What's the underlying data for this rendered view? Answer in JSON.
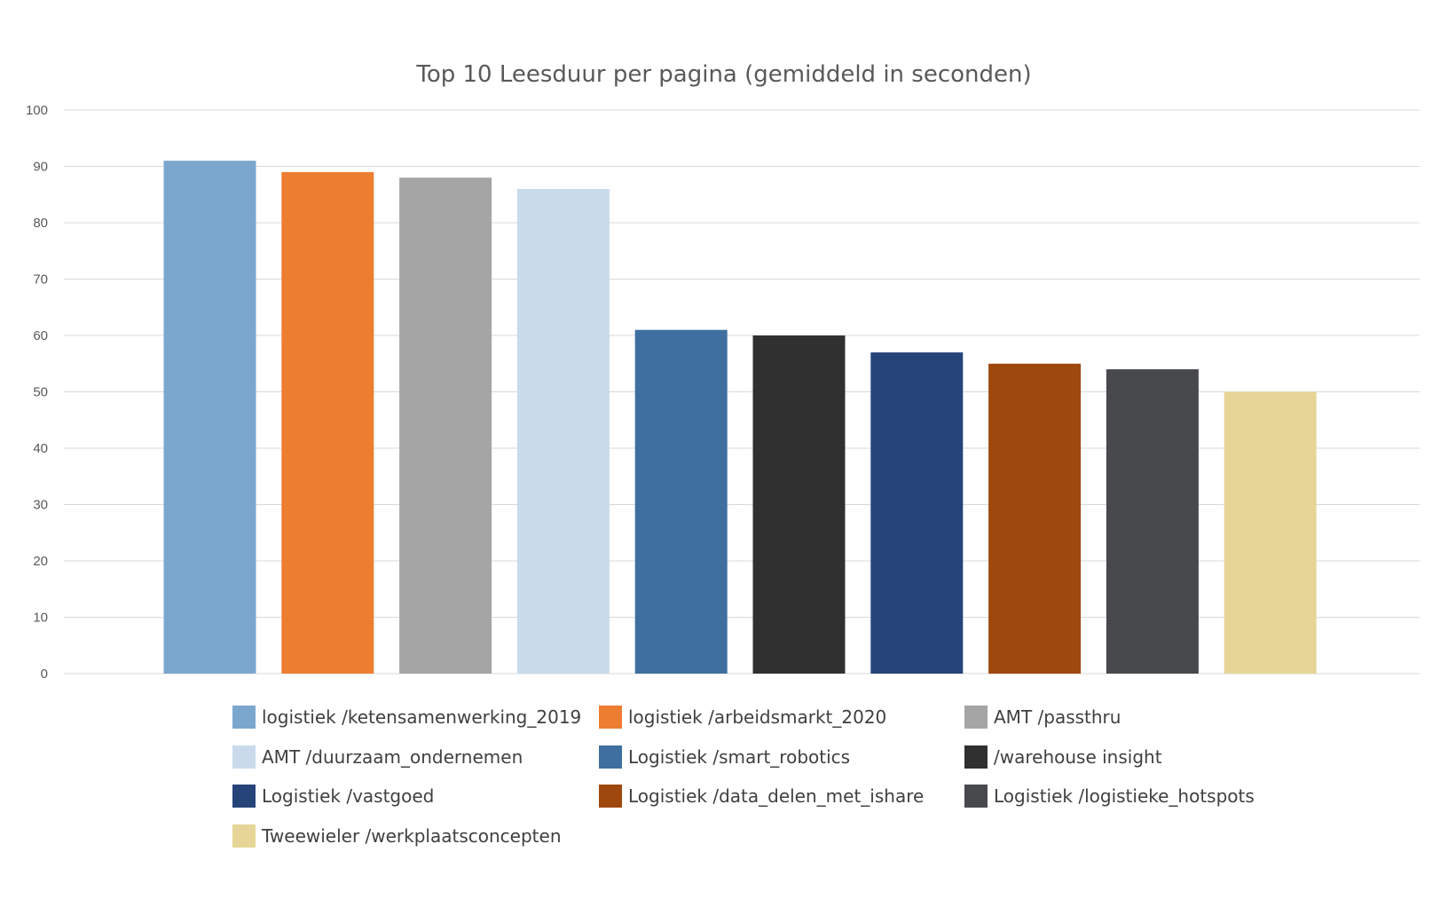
{
  "chart_data": {
    "type": "bar",
    "title": "Top 10 Leesduur per pagina (gemiddeld in seconden)",
    "xlabel": "",
    "ylabel": "",
    "ylim": [
      0,
      100
    ],
    "yticks": [
      0,
      10,
      20,
      30,
      40,
      50,
      60,
      70,
      80,
      90,
      100
    ],
    "grid": true,
    "legend_position": "bottom",
    "series": [
      {
        "name": "logistiek /ketensamenwerking_2019",
        "value": 91,
        "color": "#7BA7CE"
      },
      {
        "name": "logistiek /arbeidsmarkt_2020",
        "value": 89,
        "color": "#ED7D31"
      },
      {
        "name": "AMT /passthru",
        "value": 88,
        "color": "#A5A5A5"
      },
      {
        "name": "AMT /duurzaam_ondernemen",
        "value": 86,
        "color": "#C9DBEA"
      },
      {
        "name": "Logistiek /smart_robotics",
        "value": 61,
        "color": "#3E6FA0"
      },
      {
        "name": "/warehouse insight",
        "value": 60,
        "color": "#303030"
      },
      {
        "name": "Logistiek /vastgoed",
        "value": 57,
        "color": "#26447A"
      },
      {
        "name": "Logistiek /data_delen_met_ishare",
        "value": 55,
        "color": "#9E480E"
      },
      {
        "name": "Logistiek /logistieke_hotspots",
        "value": 54,
        "color": "#48494D"
      },
      {
        "name": "Tweewieler /werkplaatsconcepten",
        "value": 50,
        "color": "#E6D597"
      }
    ]
  }
}
